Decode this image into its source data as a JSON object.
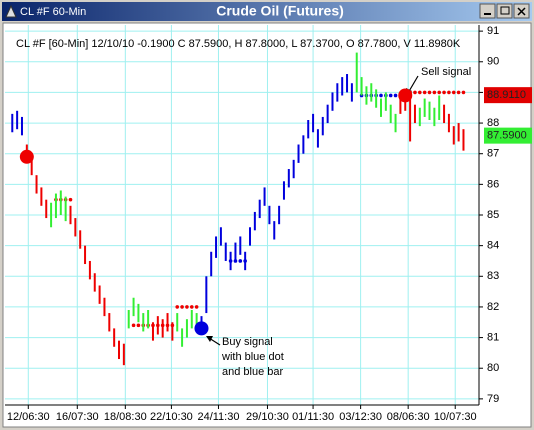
{
  "window": {
    "title": "CL #F 60-Min"
  },
  "chart_data": {
    "type": "bar-chart",
    "title": "Crude Oil (Futures)",
    "info": "CL #F [60-Min] 12/10/10 -0.1900 C 87.5900, H 87.8000, L 87.3700, O 87.7800, V 11.8980K",
    "ylim": [
      78.8,
      91.2
    ],
    "yticks": [
      79,
      80,
      81,
      82,
      83,
      84,
      85,
      86,
      87,
      88,
      89,
      90,
      91
    ],
    "xlim": [
      -1.5,
      96.2
    ],
    "xticks": [
      {
        "value": 3.3,
        "label": "12/06:30"
      },
      {
        "value": 13.4,
        "label": "16/07:30"
      },
      {
        "value": 23.3,
        "label": "18/08:30"
      },
      {
        "value": 32.8,
        "label": "22/10:30"
      },
      {
        "value": 42.5,
        "label": "24/11:30"
      },
      {
        "value": 52.6,
        "label": "29/10:30"
      },
      {
        "value": 62,
        "label": "01/11:30"
      },
      {
        "value": 71.8,
        "label": "03/12:30"
      },
      {
        "value": 81.6,
        "label": "08/06:30"
      },
      {
        "value": 91.3,
        "label": "10/07:30"
      }
    ],
    "grid": true,
    "colors": {
      "b": "#0000dd",
      "r": "#ee0000",
      "g": "#33ee33"
    },
    "bars": {
      "high": [
        88.3,
        88.4,
        88.2,
        87.3,
        86.9,
        86.3,
        85.9,
        85.5,
        85.4,
        85.7,
        85.8,
        85.6,
        85.3,
        84.9,
        84.5,
        84.0,
        83.5,
        83.1,
        82.7,
        82.3,
        81.8,
        81.3,
        80.9,
        80.8,
        81.9,
        82.3,
        82.1,
        81.8,
        81.9,
        81.5,
        81.7,
        81.6,
        81.8,
        81.5,
        81.8,
        81.3,
        81.6,
        81.9,
        81.8,
        81.7,
        83.0,
        83.8,
        84.3,
        84.6,
        84.1,
        83.8,
        84.1,
        84.3,
        83.8,
        84.6,
        85.1,
        85.5,
        85.9,
        85.3,
        84.8,
        85.3,
        86.1,
        86.5,
        86.8,
        87.3,
        87.6,
        88.1,
        88.3,
        87.8,
        88.2,
        88.6,
        89.0,
        89.3,
        89.5,
        89.6,
        89.3,
        90.3,
        89.5,
        89.2,
        89.3,
        89.1,
        88.8,
        89.0,
        88.6,
        88.3,
        88.9,
        89.0,
        88.8,
        88.6,
        88.5,
        88.8,
        88.7,
        88.5,
        88.9,
        88.6,
        88.3,
        87.9,
        88.0,
        87.8
      ],
      "low": [
        87.7,
        87.8,
        87.6,
        86.7,
        86.3,
        85.7,
        85.3,
        84.9,
        84.6,
        84.9,
        85.0,
        84.8,
        84.7,
        84.3,
        83.9,
        83.4,
        82.9,
        82.5,
        82.1,
        81.7,
        81.2,
        80.7,
        80.3,
        80.1,
        81.3,
        81.7,
        81.5,
        81.2,
        81.3,
        80.9,
        81.1,
        81.0,
        81.2,
        80.9,
        81.2,
        80.7,
        81.0,
        81.3,
        81.2,
        81.1,
        81.8,
        83.0,
        83.6,
        84.0,
        83.5,
        83.2,
        83.5,
        83.7,
        83.2,
        84.0,
        84.5,
        84.9,
        85.3,
        84.7,
        84.2,
        84.7,
        85.5,
        85.9,
        86.2,
        86.7,
        87.0,
        87.5,
        87.7,
        87.2,
        87.6,
        88.0,
        88.4,
        88.7,
        88.9,
        89.0,
        88.7,
        89.0,
        88.9,
        88.6,
        88.7,
        88.5,
        88.2,
        88.4,
        88.0,
        87.7,
        88.3,
        88.4,
        87.4,
        88.0,
        87.9,
        88.2,
        88.1,
        87.9,
        88.1,
        88.0,
        87.7,
        87.3,
        87.4,
        87.1
      ],
      "trend": [
        "b",
        "b",
        "b",
        "r",
        "r",
        "r",
        "r",
        "r",
        "g",
        "g",
        "g",
        "g",
        "r",
        "r",
        "r",
        "r",
        "r",
        "r",
        "r",
        "r",
        "r",
        "r",
        "r",
        "r",
        "g",
        "g",
        "g",
        "g",
        "g",
        "r",
        "r",
        "r",
        "r",
        "r",
        "g",
        "g",
        "g",
        "g",
        "g",
        "b",
        "b",
        "b",
        "b",
        "b",
        "b",
        "b",
        "b",
        "b",
        "b",
        "b",
        "b",
        "b",
        "b",
        "b",
        "b",
        "b",
        "b",
        "b",
        "b",
        "b",
        "b",
        "b",
        "b",
        "b",
        "b",
        "b",
        "b",
        "b",
        "b",
        "b",
        "b",
        "g",
        "g",
        "g",
        "g",
        "g",
        "g",
        "g",
        "g",
        "g",
        "r",
        "r",
        "r",
        "r",
        "g",
        "g",
        "g",
        "g",
        "g",
        "r",
        "r",
        "r",
        "r",
        "r"
      ]
    },
    "stops": [
      {
        "start": 9,
        "end": 12,
        "value": 85.5,
        "color": "r"
      },
      {
        "start": 25,
        "end": 33,
        "value": 81.4,
        "color": "r"
      },
      {
        "start": 34,
        "end": 38,
        "value": 82.0,
        "color": "r"
      },
      {
        "start": 45,
        "end": 48,
        "value": 83.5,
        "color": "b"
      },
      {
        "start": 72,
        "end": 81,
        "value": 88.9,
        "color": "b"
      },
      {
        "start": 82,
        "end": 93,
        "value": 89.0,
        "color": "r"
      }
    ],
    "signals": [
      {
        "x": 3,
        "value": 86.9,
        "color": "r"
      },
      {
        "x": 39,
        "value": 81.3,
        "color": "b"
      },
      {
        "x": 81,
        "value": 88.9,
        "color": "r"
      }
    ],
    "price_labels": [
      {
        "value": 88.911,
        "label": "88.9110",
        "color": "#e00000"
      },
      {
        "value": 87.59,
        "label": "87.5900",
        "color": "#33ee33"
      }
    ],
    "annotations": {
      "sell": "Sell signal",
      "buy": [
        "Buy signal",
        "with blue dot",
        "and blue bar"
      ]
    }
  }
}
